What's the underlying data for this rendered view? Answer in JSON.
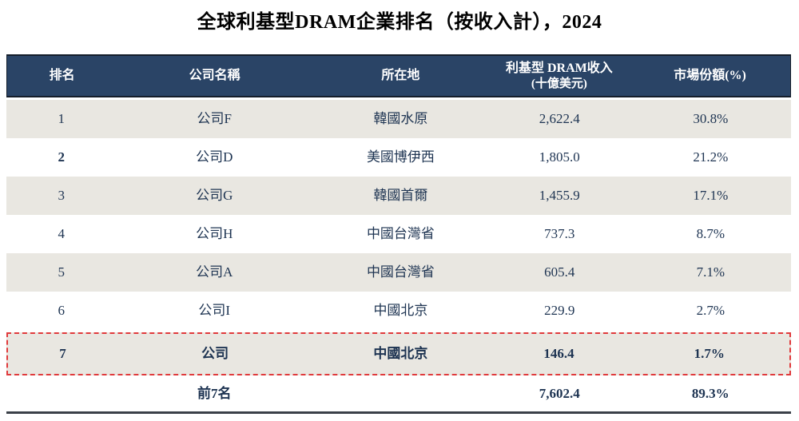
{
  "title": "全球利基型DRAM企業排名（按收入計），2024",
  "colors": {
    "header_bg": "#2a4466",
    "header_text": "#ffffff",
    "row_alt_bg": "#e9e7e1",
    "row_bg": "#ffffff",
    "body_text": "#1e3452",
    "highlight_border": "#e03a3c",
    "table_bottom_border": "#3a4048"
  },
  "table": {
    "columns": {
      "rank": "排名",
      "company": "公司名稱",
      "location": "所在地",
      "revenue_line1": "利基型 DRAM收入",
      "revenue_line2": "(十億美元)",
      "share": "市場份額(%)"
    },
    "rows": [
      {
        "rank": "1",
        "company": "公司F",
        "location": "韓國水原",
        "revenue": "2,622.4",
        "share": "30.8%",
        "highlighted": false
      },
      {
        "rank": "2",
        "company": "公司D",
        "location": "美國博伊西",
        "revenue": "1,805.0",
        "share": "21.2%",
        "highlighted": false
      },
      {
        "rank": "3",
        "company": "公司G",
        "location": "韓國首爾",
        "revenue": "1,455.9",
        "share": "17.1%",
        "highlighted": false
      },
      {
        "rank": "4",
        "company": "公司H",
        "location": "中國台灣省",
        "revenue": "737.3",
        "share": "8.7%",
        "highlighted": false
      },
      {
        "rank": "5",
        "company": "公司A",
        "location": "中國台灣省",
        "revenue": "605.4",
        "share": "7.1%",
        "highlighted": false
      },
      {
        "rank": "6",
        "company": "公司I",
        "location": "中國北京",
        "revenue": "229.9",
        "share": "2.7%",
        "highlighted": false
      },
      {
        "rank": "7",
        "company": "公司",
        "location": "中國北京",
        "revenue": "146.4",
        "share": "1.7%",
        "highlighted": true
      }
    ],
    "total": {
      "label": "前7名",
      "revenue": "7,602.4",
      "share": "89.3%"
    }
  }
}
